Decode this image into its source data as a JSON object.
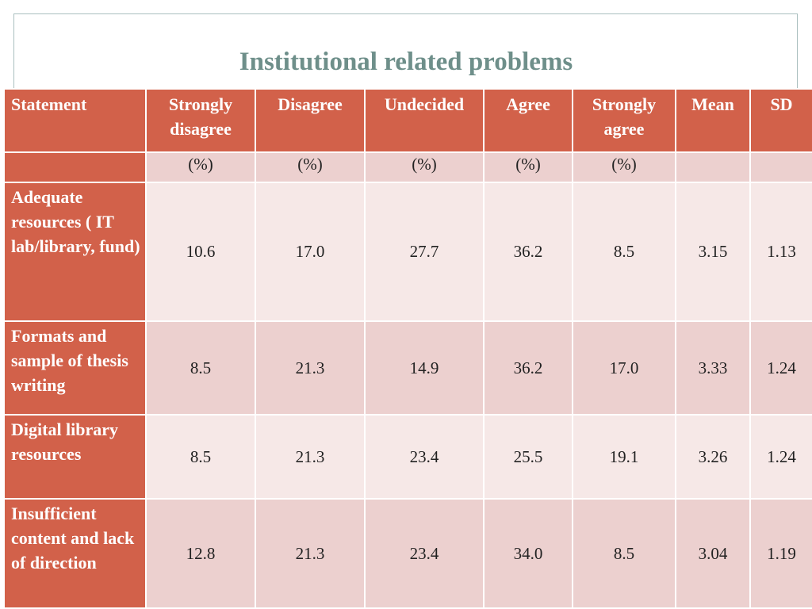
{
  "title": "Institutional related problems",
  "table": {
    "headers": [
      "Statement",
      "Strongly disagree",
      "Disagree",
      "Undecided",
      "Agree",
      "Strongly agree",
      "Mean",
      "SD"
    ],
    "units": [
      "",
      "(%)",
      "(%)",
      "(%)",
      "(%)",
      "(%)",
      "",
      ""
    ],
    "rows": [
      {
        "statement": "Adequate resources ( IT lab/library, fund)",
        "values": [
          "10.6",
          "17.0",
          "27.7",
          "36.2",
          "8.5",
          "3.15",
          "1.13"
        ]
      },
      {
        "statement": "Formats and sample of thesis writing",
        "values": [
          "8.5",
          "21.3",
          "14.9",
          "36.2",
          "17.0",
          "3.33",
          "1.24"
        ]
      },
      {
        "statement": "Digital library resources",
        "values": [
          "8.5",
          "21.3",
          "23.4",
          "25.5",
          "19.1",
          "3.26",
          "1.24"
        ]
      },
      {
        "statement": "Insufficient content and lack of direction",
        "values": [
          "12.8",
          "21.3",
          "23.4",
          "34.0",
          "8.5",
          "3.04",
          "1.19"
        ]
      }
    ]
  },
  "colors": {
    "header_bg": "#d2614a",
    "title": "#6e8f8a",
    "cell_dark": "#ecd0cf",
    "cell_light": "#f6e8e7"
  }
}
